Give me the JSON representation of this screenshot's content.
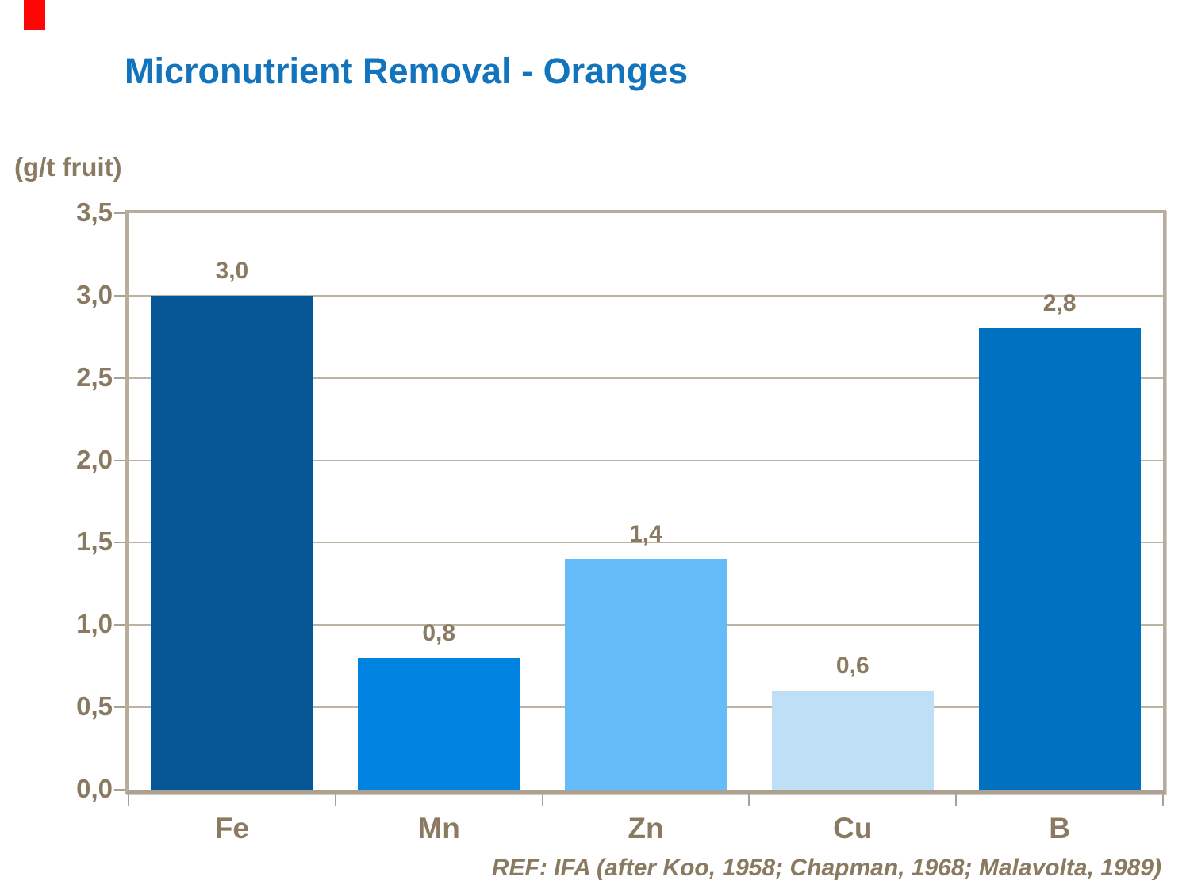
{
  "slide": {
    "title": "Micronutrient Removal - Oranges",
    "unit_label": "(g/t fruit)",
    "reference": "REF: IFA (after Koo, 1958; Chapman, 1968; Malavolta, 1989)"
  },
  "chart_data": {
    "type": "bar",
    "title": "Micronutrient Removal - Oranges",
    "ylabel": "(g/t fruit)",
    "xlabel": "",
    "categories": [
      "Fe",
      "Mn",
      "Zn",
      "Cu",
      "B"
    ],
    "values": [
      3.0,
      0.8,
      1.4,
      0.6,
      2.8
    ],
    "value_labels": [
      "3,0",
      "0,8",
      "1,4",
      "0,6",
      "2,8"
    ],
    "bar_colors": [
      "#065695",
      "#0082e0",
      "#66bbf9",
      "#bfdff7",
      "#0070c0"
    ],
    "ylim": [
      0,
      3.5
    ],
    "ytick_step": 0.5,
    "ytick_labels": [
      "0,0",
      "0,5",
      "1,0",
      "1,5",
      "2,0",
      "2,5",
      "3,0",
      "3,5"
    ],
    "grid": true,
    "legend": false
  },
  "colors": {
    "title_blue": "#1274bd",
    "text_brown": "#8b7a62",
    "gridline": "#a79a83",
    "plot_border": "#b9ac9b",
    "axis_line": "#aca090",
    "red_mark": "#fe0606",
    "background": "#ffffff"
  }
}
